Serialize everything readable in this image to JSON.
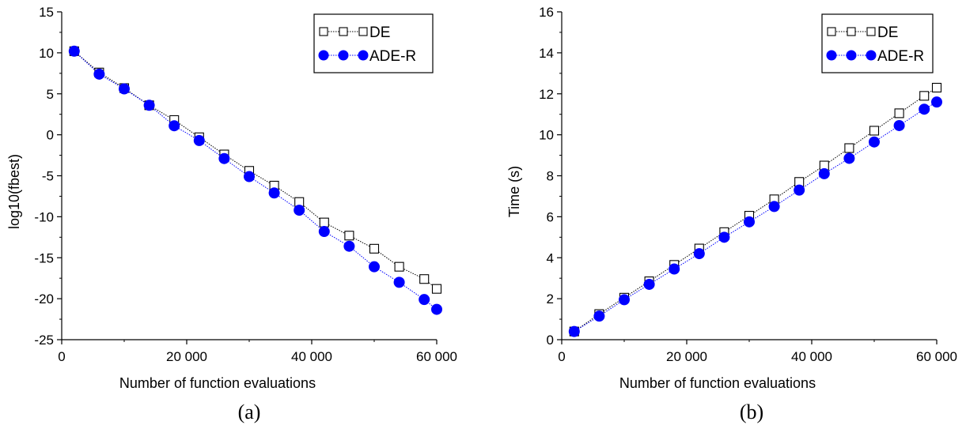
{
  "chart_data": [
    {
      "type": "line",
      "caption": "(a)",
      "xlabel": "Number of function evaluations",
      "ylabel": "log10(fbest)",
      "xlim": [
        0,
        60000
      ],
      "ylim": [
        -25,
        15
      ],
      "xticks": [
        0,
        20000,
        40000,
        60000
      ],
      "xtick_labels": [
        "0",
        "20 000",
        "40 000",
        "60 000"
      ],
      "yticks": [
        15,
        10,
        5,
        0,
        -5,
        -10,
        -15,
        -20,
        -25
      ],
      "ytick_labels": [
        "15",
        "10",
        "5",
        "0",
        "-5",
        "-10",
        "-15",
        "-20",
        "-25"
      ],
      "grid": false,
      "legend": "top-right",
      "x": [
        2000,
        6000,
        10000,
        14000,
        18000,
        22000,
        26000,
        30000,
        34000,
        38000,
        42000,
        46000,
        50000,
        54000,
        58000,
        60000
      ],
      "series": [
        {
          "name": "DE",
          "marker": "open-square",
          "color": "#000000",
          "values": [
            10.2,
            7.6,
            5.7,
            3.6,
            1.8,
            -0.3,
            -2.4,
            -4.4,
            -6.2,
            -8.2,
            -10.7,
            -12.3,
            -13.9,
            -16.1,
            -17.6,
            -18.8
          ]
        },
        {
          "name": "ADE-R",
          "marker": "filled-circle",
          "color": "#0000ff",
          "values": [
            10.2,
            7.4,
            5.6,
            3.6,
            1.1,
            -0.7,
            -2.9,
            -5.1,
            -7.1,
            -9.2,
            -11.8,
            -13.6,
            -16.1,
            -18.0,
            -20.1,
            -21.3
          ]
        }
      ]
    },
    {
      "type": "line",
      "caption": "(b)",
      "xlabel": "Number of function evaluations",
      "ylabel": "Time (s)",
      "xlim": [
        0,
        60000
      ],
      "ylim": [
        0,
        16
      ],
      "xticks": [
        0,
        20000,
        40000,
        60000
      ],
      "xtick_labels": [
        "0",
        "20 000",
        "40 000",
        "60 000"
      ],
      "yticks": [
        0,
        2,
        4,
        6,
        8,
        10,
        12,
        14,
        16
      ],
      "ytick_labels": [
        "0",
        "2",
        "4",
        "6",
        "8",
        "10",
        "12",
        "14",
        "16"
      ],
      "grid": false,
      "legend": "top-right",
      "x": [
        2000,
        6000,
        10000,
        14000,
        18000,
        22000,
        26000,
        30000,
        34000,
        38000,
        42000,
        46000,
        50000,
        54000,
        58000,
        60000
      ],
      "series": [
        {
          "name": "DE",
          "marker": "open-square",
          "color": "#000000",
          "values": [
            0.4,
            1.25,
            2.05,
            2.85,
            3.65,
            4.45,
            5.25,
            6.05,
            6.85,
            7.7,
            8.5,
            9.35,
            10.2,
            11.05,
            11.9,
            12.3
          ]
        },
        {
          "name": "ADE-R",
          "marker": "filled-circle",
          "color": "#0000ff",
          "values": [
            0.4,
            1.15,
            1.95,
            2.7,
            3.45,
            4.2,
            5.0,
            5.75,
            6.5,
            7.3,
            8.1,
            8.85,
            9.65,
            10.45,
            11.25,
            11.6
          ]
        }
      ]
    }
  ]
}
